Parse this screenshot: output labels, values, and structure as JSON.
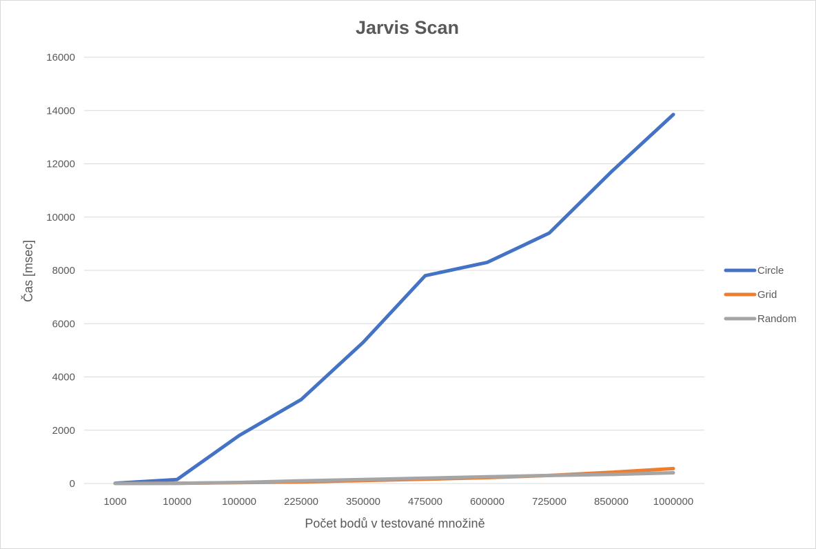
{
  "chart_data": {
    "type": "line",
    "title": "Jarvis Scan",
    "xlabel": "Počet bodů v testované množině",
    "ylabel": "Čas [msec]",
    "categories": [
      "1000",
      "10000",
      "100000",
      "225000",
      "350000",
      "475000",
      "600000",
      "725000",
      "850000",
      "1000000"
    ],
    "ylim": [
      0,
      16000
    ],
    "yticks": [
      0,
      2000,
      4000,
      6000,
      8000,
      10000,
      12000,
      14000,
      16000
    ],
    "grid": true,
    "legend_position": "right",
    "series": [
      {
        "name": "Circle",
        "color": "#4472c4",
        "values": [
          10,
          150,
          1800,
          3150,
          5300,
          7800,
          8300,
          9400,
          11700,
          13850
        ]
      },
      {
        "name": "Grid",
        "color": "#ed7d31",
        "values": [
          1,
          5,
          30,
          60,
          110,
          160,
          220,
          300,
          420,
          560
        ]
      },
      {
        "name": "Random",
        "color": "#a5a5a5",
        "values": [
          1,
          5,
          40,
          100,
          150,
          200,
          250,
          300,
          340,
          400
        ]
      }
    ]
  }
}
